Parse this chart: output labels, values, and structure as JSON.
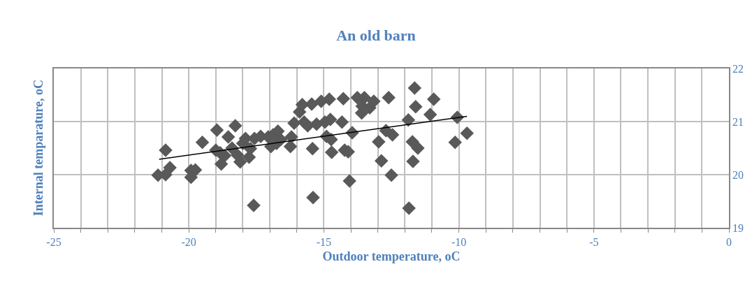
{
  "chart_data": {
    "type": "scatter",
    "title": "An old barn",
    "xlabel": "Outdoor temperature, oC",
    "ylabel": "Internal temparature, oC",
    "xlim": [
      -25,
      0
    ],
    "ylim": [
      19,
      22
    ],
    "xticks": [
      -25,
      {
        "value": -24,
        "label": null
      },
      {
        "value": -23,
        "label": null
      },
      {
        "value": -22,
        "label": null
      },
      {
        "value": -21,
        "label": null
      },
      -20,
      {
        "value": -19,
        "label": null
      },
      {
        "value": -18,
        "label": null
      },
      {
        "value": -17,
        "label": null
      },
      {
        "value": -16,
        "label": null
      },
      -15,
      {
        "value": -14,
        "label": null
      },
      {
        "value": -13,
        "label": null
      },
      {
        "value": -12,
        "label": null
      },
      {
        "value": -11,
        "label": null
      },
      -10,
      {
        "value": -9,
        "label": null
      },
      {
        "value": -8,
        "label": null
      },
      {
        "value": -7,
        "label": null
      },
      {
        "value": -6,
        "label": null
      },
      -5,
      {
        "value": -4,
        "label": null
      },
      {
        "value": -3,
        "label": null
      },
      {
        "value": -2,
        "label": null
      },
      {
        "value": -1,
        "label": null
      },
      0
    ],
    "yticks": [
      19,
      20,
      21,
      22
    ],
    "grid": true,
    "legend": false,
    "marker": "diamond",
    "series": [
      {
        "color": "#595959",
        "x": [
          -21.14,
          -20.86,
          -20.86,
          -20.7,
          -19.92,
          -19.92,
          -19.76,
          -19.5,
          -19.0,
          -18.96,
          -18.84,
          -18.8,
          -18.67,
          -18.54,
          -18.4,
          -18.28,
          -18.2,
          -18.1,
          -18.0,
          -17.9,
          -17.77,
          -17.72,
          -17.6,
          -17.57,
          -17.34,
          -17.06,
          -16.96,
          -16.88,
          -16.75,
          -16.7,
          -16.6,
          -16.24,
          -16.2,
          -16.1,
          -15.9,
          -15.8,
          -15.73,
          -15.6,
          -15.45,
          -15.42,
          -15.4,
          -15.27,
          -15.1,
          -14.96,
          -14.9,
          -14.8,
          -14.76,
          -14.73,
          -14.71,
          -14.28,
          -14.33,
          -14.23,
          -14.1,
          -14.05,
          -13.95,
          -13.76,
          -13.58,
          -13.6,
          -13.5,
          -13.3,
          -13.15,
          -12.97,
          -12.87,
          -12.7,
          -12.6,
          -12.5,
          -12.46,
          -11.87,
          -11.85,
          -11.72,
          -11.7,
          -11.64,
          -11.6,
          -11.52,
          -11.06,
          -10.93,
          -10.14,
          -10.06,
          -9.7
        ],
        "values": [
          19.99,
          20.46,
          20.0,
          20.13,
          20.08,
          19.95,
          20.09,
          20.61,
          20.46,
          20.84,
          20.41,
          20.2,
          20.36,
          20.71,
          20.5,
          20.92,
          20.37,
          20.24,
          20.59,
          20.68,
          20.33,
          20.49,
          19.42,
          20.68,
          20.72,
          20.71,
          20.53,
          20.75,
          20.59,
          20.82,
          20.66,
          20.53,
          20.71,
          20.97,
          21.18,
          21.32,
          20.99,
          20.92,
          21.33,
          20.49,
          19.57,
          20.95,
          21.38,
          20.99,
          20.72,
          21.42,
          21.04,
          20.66,
          20.42,
          21.43,
          20.99,
          20.46,
          20.43,
          19.88,
          20.79,
          21.45,
          21.29,
          21.16,
          21.45,
          21.26,
          21.38,
          20.62,
          20.26,
          20.83,
          21.45,
          19.99,
          20.75,
          21.03,
          19.37,
          20.62,
          20.25,
          21.63,
          21.28,
          20.5,
          21.13,
          21.42,
          20.61,
          21.08,
          20.78
        ]
      },
      {
        "type": "line",
        "color": "#000000",
        "marker": "none",
        "x": [
          -21.1,
          -9.7
        ],
        "values": [
          20.29,
          21.1
        ]
      }
    ]
  }
}
